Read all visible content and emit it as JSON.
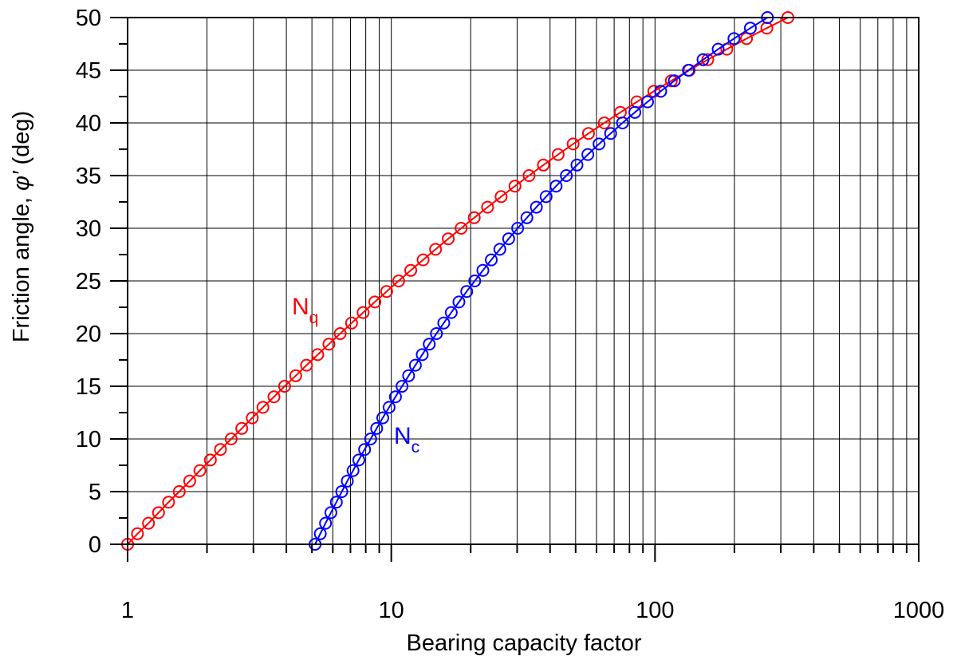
{
  "chart_data": {
    "type": "scatter",
    "x_scale": "log",
    "xlim": [
      1,
      1000
    ],
    "ylim": [
      0,
      50
    ],
    "grid": true,
    "xlabel": "Bearing capacity factor",
    "ylabel_prefix": "Friction angle, ",
    "ylabel_symbol": "φ′",
    "ylabel_suffix": " (deg)",
    "x_tick_labels": [
      "1",
      "10",
      "100",
      "1000"
    ],
    "y_tick_labels": [
      "0",
      "5",
      "10",
      "15",
      "20",
      "25",
      "30",
      "35",
      "40",
      "45",
      "50"
    ],
    "series": [
      {
        "label_main": "N",
        "label_sub": "q",
        "color": "#ff0000",
        "y": [
          0,
          1,
          2,
          3,
          4,
          5,
          6,
          7,
          8,
          9,
          10,
          11,
          12,
          13,
          14,
          15,
          16,
          17,
          18,
          19,
          20,
          21,
          22,
          23,
          24,
          25,
          26,
          27,
          28,
          29,
          30,
          31,
          32,
          33,
          34,
          35,
          36,
          37,
          38,
          39,
          40,
          41,
          42,
          43,
          44,
          45,
          46,
          47,
          48,
          49,
          50
        ],
        "x": [
          1.0,
          1.09,
          1.2,
          1.31,
          1.43,
          1.57,
          1.72,
          1.88,
          2.06,
          2.25,
          2.47,
          2.71,
          2.97,
          3.26,
          3.59,
          3.94,
          4.34,
          4.77,
          5.26,
          5.8,
          6.4,
          7.07,
          7.82,
          8.66,
          9.6,
          10.66,
          11.85,
          13.2,
          14.72,
          16.44,
          18.4,
          20.63,
          23.18,
          26.09,
          29.44,
          33.3,
          37.75,
          42.92,
          48.93,
          55.96,
          64.2,
          73.9,
          85.37,
          99.01,
          115.31,
          134.87,
          158.5,
          187.21,
          222.3,
          265.5,
          319.06
        ]
      },
      {
        "label_main": "N",
        "label_sub": "c",
        "color": "#0000ff",
        "y": [
          0,
          1,
          2,
          3,
          4,
          5,
          6,
          7,
          8,
          9,
          10,
          11,
          12,
          13,
          14,
          15,
          16,
          17,
          18,
          19,
          20,
          21,
          22,
          23,
          24,
          25,
          26,
          27,
          28,
          29,
          30,
          31,
          32,
          33,
          34,
          35,
          36,
          37,
          38,
          39,
          40,
          41,
          42,
          43,
          44,
          45,
          46,
          47,
          48,
          49,
          50
        ],
        "x": [
          5.14,
          5.38,
          5.63,
          5.9,
          6.19,
          6.49,
          6.81,
          7.16,
          7.53,
          7.92,
          8.35,
          8.8,
          9.28,
          9.81,
          10.37,
          10.98,
          11.63,
          12.34,
          13.1,
          13.93,
          14.83,
          15.81,
          16.88,
          18.05,
          19.32,
          20.72,
          22.25,
          23.94,
          25.8,
          27.86,
          30.14,
          32.67,
          35.49,
          38.64,
          42.16,
          46.12,
          50.59,
          55.63,
          61.35,
          67.87,
          75.31,
          83.86,
          93.71,
          105.11,
          118.37,
          133.88,
          152.1,
          173.64,
          199.26,
          229.93,
          266.89
        ]
      }
    ]
  }
}
